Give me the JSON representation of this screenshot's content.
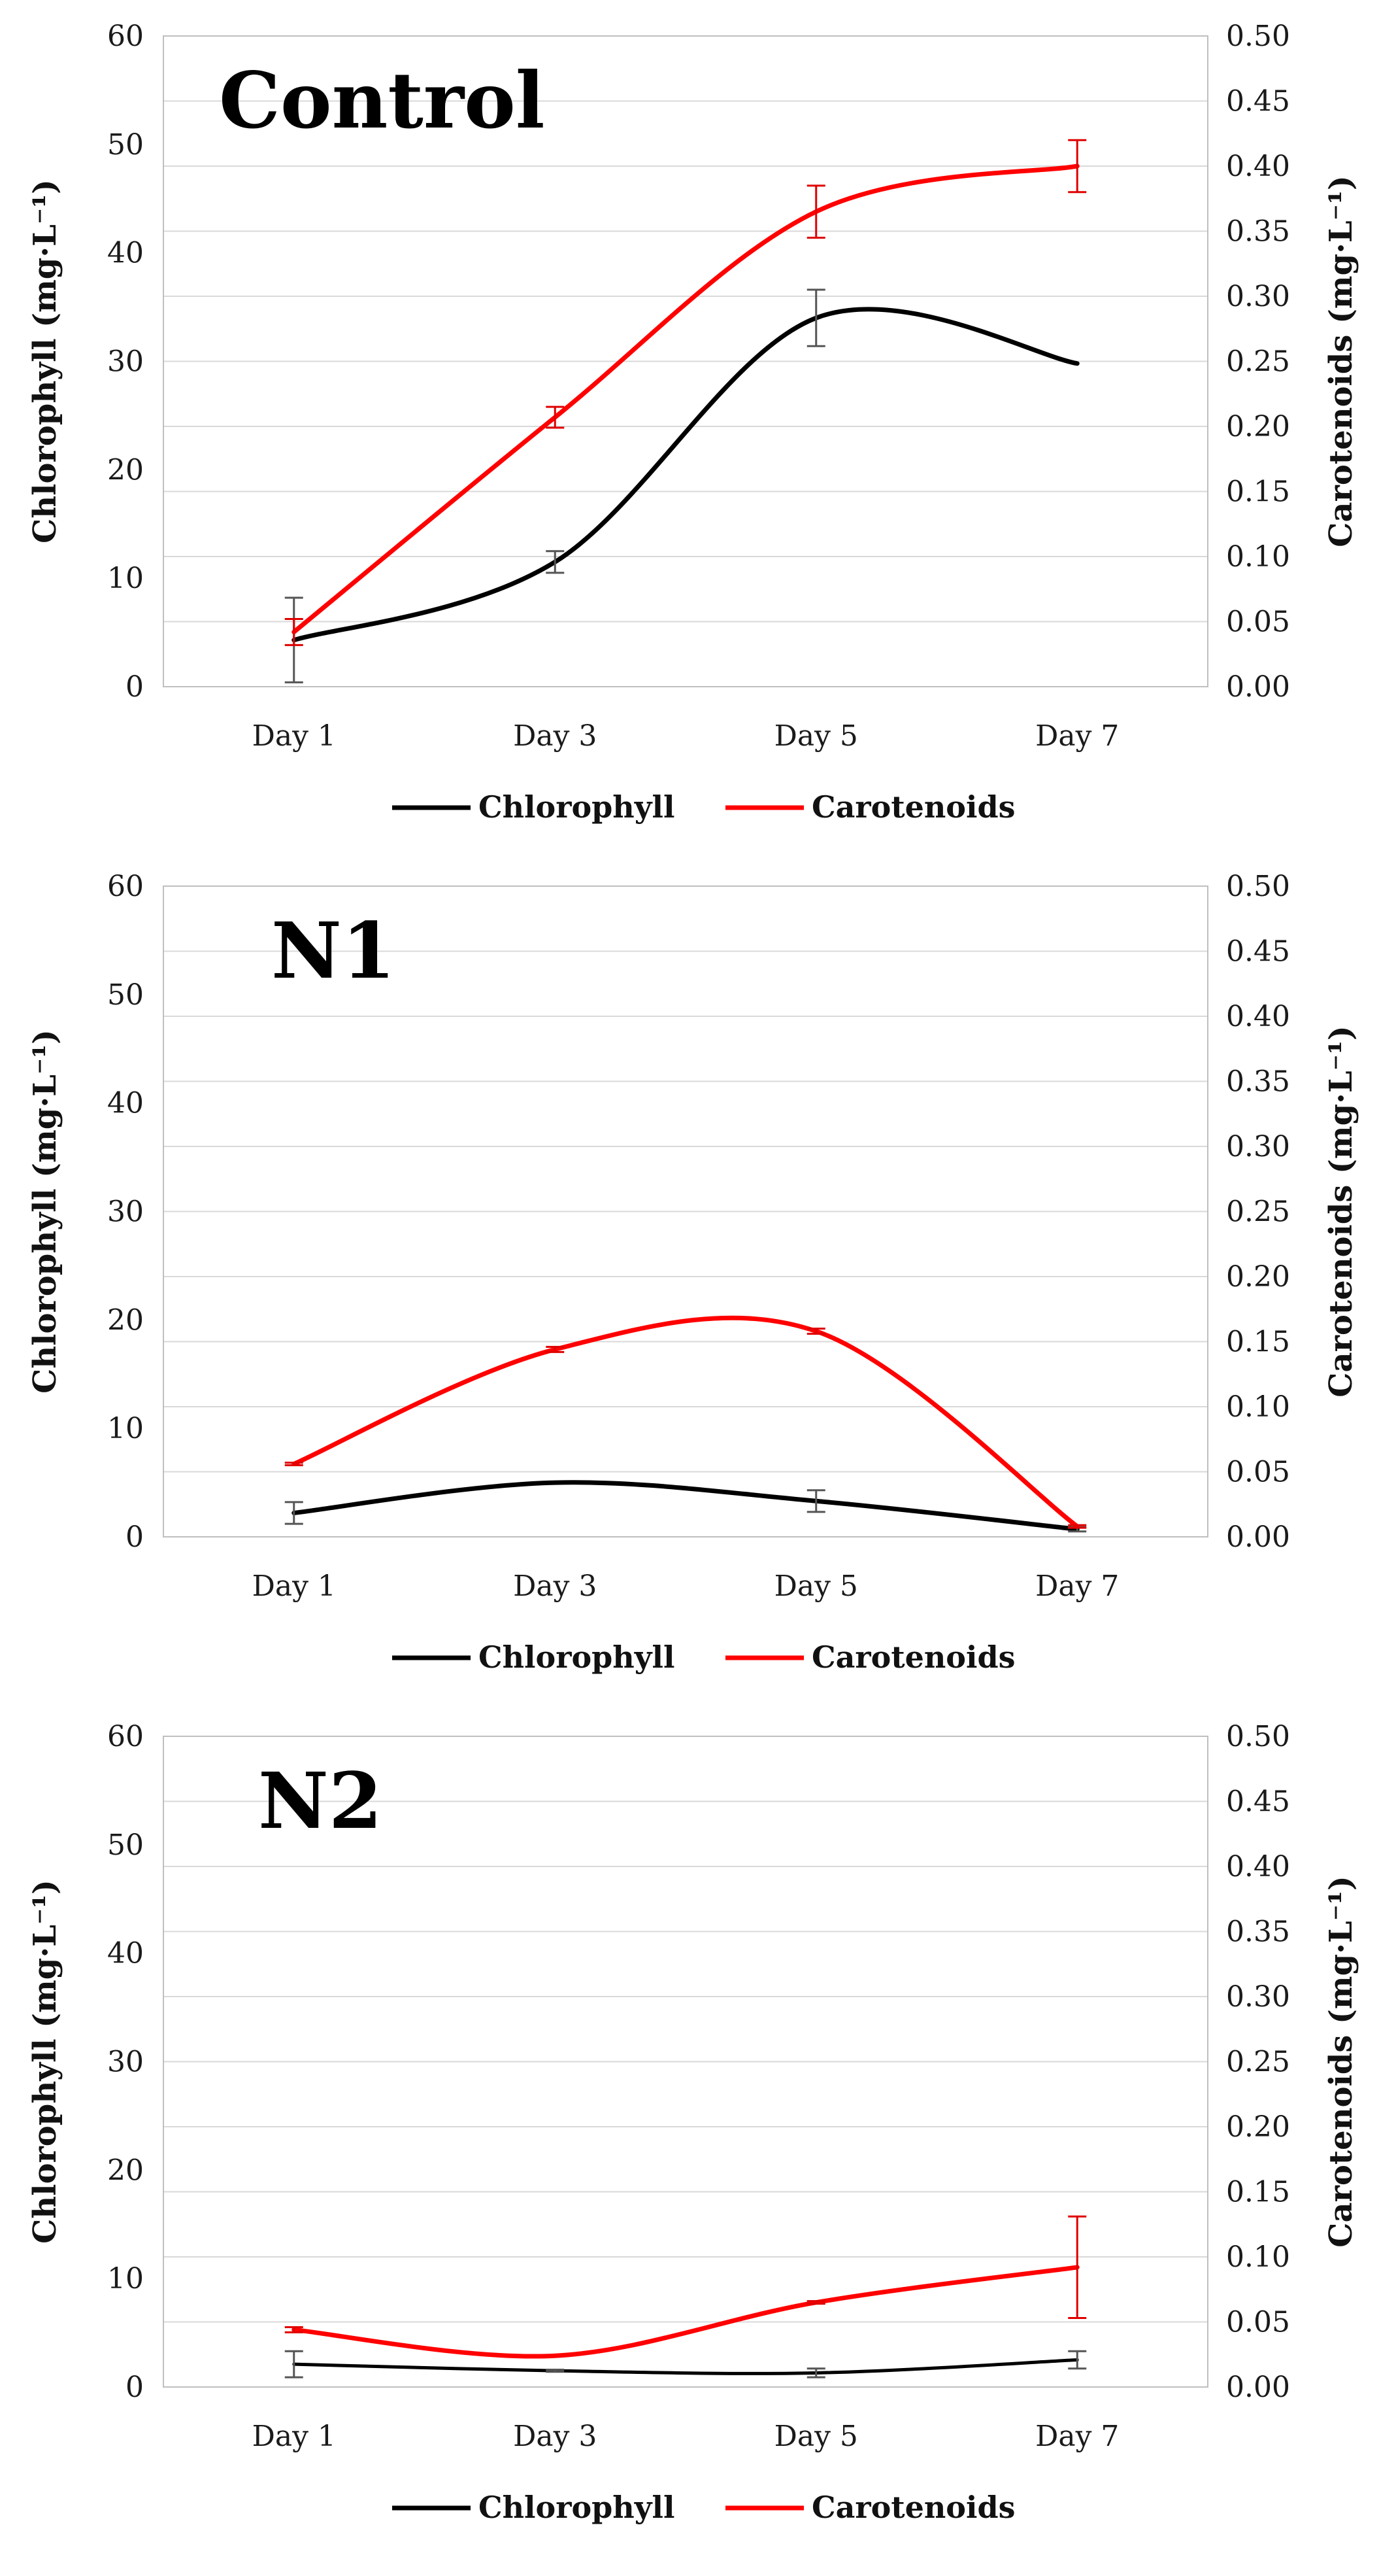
{
  "colors": {
    "chlorophyll": "#000000",
    "carotenoids": "#ff0000",
    "grid": "#d9d9d9",
    "frame": "#bfbfbf",
    "errorbar_chl": "#555555",
    "errorbar_car": "#e00000"
  },
  "chart_data": [
    {
      "type": "line",
      "title": "Control",
      "categories": [
        "Day 1",
        "Day 3",
        "Day 5",
        "Day 7"
      ],
      "ylabel": "Chlorophyll (mg·L⁻¹)",
      "ylabel_right": "Carotenoids (mg·L⁻¹)",
      "ylim": [
        0,
        60
      ],
      "ylim_right": [
        0,
        0.5
      ],
      "yticks": [
        "0",
        "10",
        "20",
        "30",
        "40",
        "50",
        "60"
      ],
      "yticks_right": [
        "0.00",
        "0.05",
        "0.10",
        "0.15",
        "0.20",
        "0.25",
        "0.30",
        "0.35",
        "0.40",
        "0.45",
        "0.50"
      ],
      "grid": true,
      "legend_position": "bottom",
      "series": [
        {
          "name": "Chlorophyll",
          "axis": "left",
          "values": [
            4.3,
            11.5,
            34.0,
            29.8
          ],
          "errors": [
            3.9,
            1.0,
            2.6,
            0.0
          ]
        },
        {
          "name": "Carotenoids",
          "axis": "right",
          "values": [
            0.042,
            0.207,
            0.365,
            0.4
          ],
          "errors": [
            0.01,
            0.008,
            0.02,
            0.02
          ]
        }
      ]
    },
    {
      "type": "line",
      "title": "N1",
      "categories": [
        "Day 1",
        "Day 3",
        "Day 5",
        "Day 7"
      ],
      "ylabel": "Chlorophyll (mg·L⁻¹)",
      "ylabel_right": "Carotenoids (mg·L⁻¹)",
      "ylim": [
        0,
        60
      ],
      "ylim_right": [
        0,
        0.5
      ],
      "yticks": [
        "0",
        "10",
        "20",
        "30",
        "40",
        "50",
        "60"
      ],
      "yticks_right": [
        "0.00",
        "0.05",
        "0.10",
        "0.15",
        "0.20",
        "0.25",
        "0.30",
        "0.35",
        "0.40",
        "0.45",
        "0.50"
      ],
      "grid": true,
      "legend_position": "bottom",
      "series": [
        {
          "name": "Chlorophyll",
          "axis": "left",
          "values": [
            2.2,
            5.0,
            3.3,
            0.7
          ],
          "errors": [
            1.0,
            0.0,
            1.0,
            0.2
          ]
        },
        {
          "name": "Carotenoids",
          "axis": "right",
          "values": [
            0.056,
            0.144,
            0.158,
            0.008
          ],
          "errors": [
            0.001,
            0.002,
            0.002,
            0.001
          ]
        }
      ]
    },
    {
      "type": "line",
      "title": "N2",
      "categories": [
        "Day 1",
        "Day 3",
        "Day 5",
        "Day 7"
      ],
      "ylabel": "Chlorophyll (mg·L⁻¹)",
      "ylabel_right": "Carotenoids (mg·L⁻¹)",
      "ylim": [
        0,
        60
      ],
      "ylim_right": [
        0,
        0.5
      ],
      "yticks": [
        "0",
        "10",
        "20",
        "30",
        "40",
        "50",
        "60"
      ],
      "yticks_right": [
        "0.00",
        "0.05",
        "0.10",
        "0.15",
        "0.20",
        "0.25",
        "0.30",
        "0.35",
        "0.40",
        "0.45",
        "0.50"
      ],
      "grid": true,
      "legend_position": "bottom",
      "series": [
        {
          "name": "Chlorophyll",
          "axis": "left",
          "values": [
            2.1,
            1.5,
            1.3,
            2.5
          ],
          "errors": [
            1.2,
            0.1,
            0.4,
            0.8
          ]
        },
        {
          "name": "Carotenoids",
          "axis": "right",
          "values": [
            0.044,
            0.024,
            0.065,
            0.092
          ],
          "errors": [
            0.002,
            0.0,
            0.001,
            0.039
          ]
        }
      ]
    }
  ]
}
